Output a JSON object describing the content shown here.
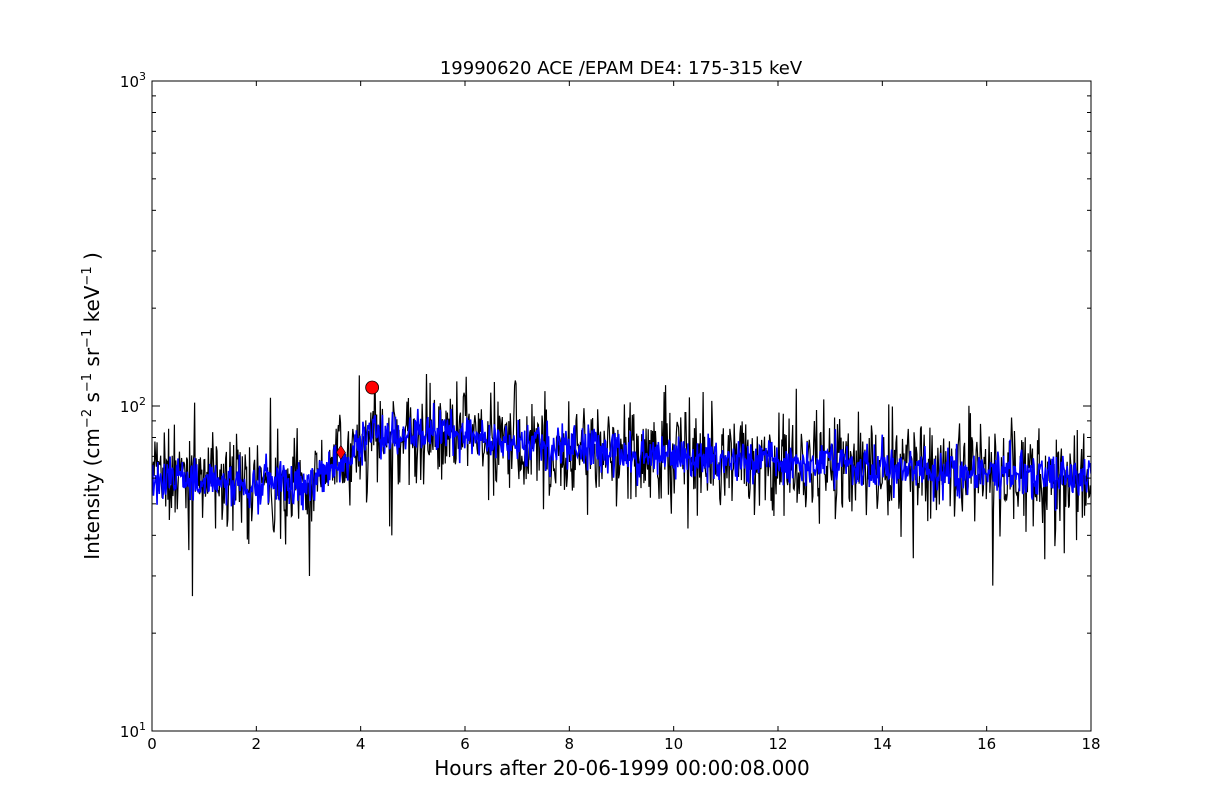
{
  "chart_data": {
    "type": "line",
    "title": "19990620 ACE /EPAM DE4: 175-315 keV",
    "xlabel": "Hours after 20-06-1999 00:00:08.000",
    "ylabel": {
      "prefix": "Intensity (cm",
      "exp1": "−2",
      "s": " s",
      "exp2": "−1",
      "sr": " sr",
      "exp3": "−1",
      "kev": " keV",
      "exp4": "−1",
      "suffix": " )"
    },
    "xlim": [
      0,
      18
    ],
    "ylim": [
      10,
      1000
    ],
    "yscale": "log",
    "x_ticks": [
      0,
      2,
      4,
      6,
      8,
      10,
      12,
      14,
      16,
      18
    ],
    "y_ticks": [
      {
        "value": 10,
        "base": "10",
        "exp": "1"
      },
      {
        "value": 100,
        "base": "10",
        "exp": "2"
      },
      {
        "value": 1000,
        "base": "10",
        "exp": "3"
      }
    ],
    "grid": false,
    "series": [
      {
        "role": "raw",
        "color": "#000000",
        "trend": [
          [
            0,
            60
          ],
          [
            0.5,
            60
          ],
          [
            1.0,
            58
          ],
          [
            2.0,
            58
          ],
          [
            3.0,
            58
          ],
          [
            3.3,
            62
          ],
          [
            3.8,
            70
          ],
          [
            4.2,
            85
          ],
          [
            4.6,
            78
          ],
          [
            5.0,
            80
          ],
          [
            5.7,
            85
          ],
          [
            6.2,
            82
          ],
          [
            7.0,
            76
          ],
          [
            8.0,
            73
          ],
          [
            9.0,
            72
          ],
          [
            10.0,
            70
          ],
          [
            11.0,
            69
          ],
          [
            12.0,
            68
          ],
          [
            13.0,
            66
          ],
          [
            14.0,
            65
          ],
          [
            15.0,
            63
          ],
          [
            16.0,
            62
          ],
          [
            17.0,
            61
          ],
          [
            18.0,
            60
          ]
        ],
        "scatter_fraction": 0.18,
        "outliers": [
          {
            "x": 0.78,
            "y": 26
          },
          {
            "x": 3.02,
            "y": 30
          },
          {
            "x": 16.12,
            "y": 28
          },
          {
            "x": 6.02,
            "y": 123
          },
          {
            "x": 6.98,
            "y": 117
          },
          {
            "x": 12.35,
            "y": 113
          },
          {
            "x": 2.27,
            "y": 106
          },
          {
            "x": 4.27,
            "y": 112
          },
          {
            "x": 4.6,
            "y": 40
          },
          {
            "x": 14.6,
            "y": 34
          }
        ]
      },
      {
        "role": "smoothed",
        "color": "#0000ff",
        "scatter_fraction": 0.08
      }
    ],
    "markers": [
      {
        "type": "diamond",
        "x": 3.62,
        "y": 72,
        "color": "#ff0000"
      },
      {
        "type": "circle",
        "x": 4.22,
        "y": 114,
        "color": "#ff0000"
      }
    ]
  }
}
